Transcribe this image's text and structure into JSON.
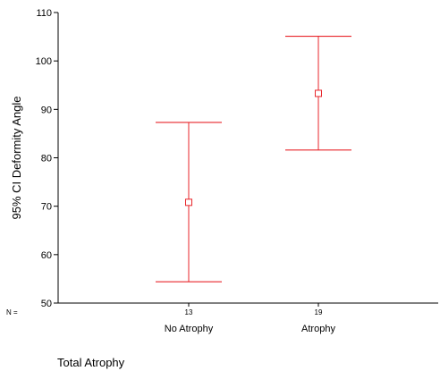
{
  "chart_data": {
    "type": "errorbar",
    "ylabel": "95% CI Deformity Angle",
    "xlabel": "Total Atrophy",
    "ylim": [
      50,
      110
    ],
    "yticks": [
      50,
      60,
      70,
      80,
      90,
      100,
      110
    ],
    "n_prefix": "N =",
    "categories": [
      "No Atrophy",
      "Atrophy"
    ],
    "n": [
      "13",
      "19"
    ],
    "mean": [
      70.8,
      93.3
    ],
    "lower": [
      54.4,
      81.6
    ],
    "upper": [
      87.3,
      105.1
    ],
    "color": "#e8262b"
  }
}
